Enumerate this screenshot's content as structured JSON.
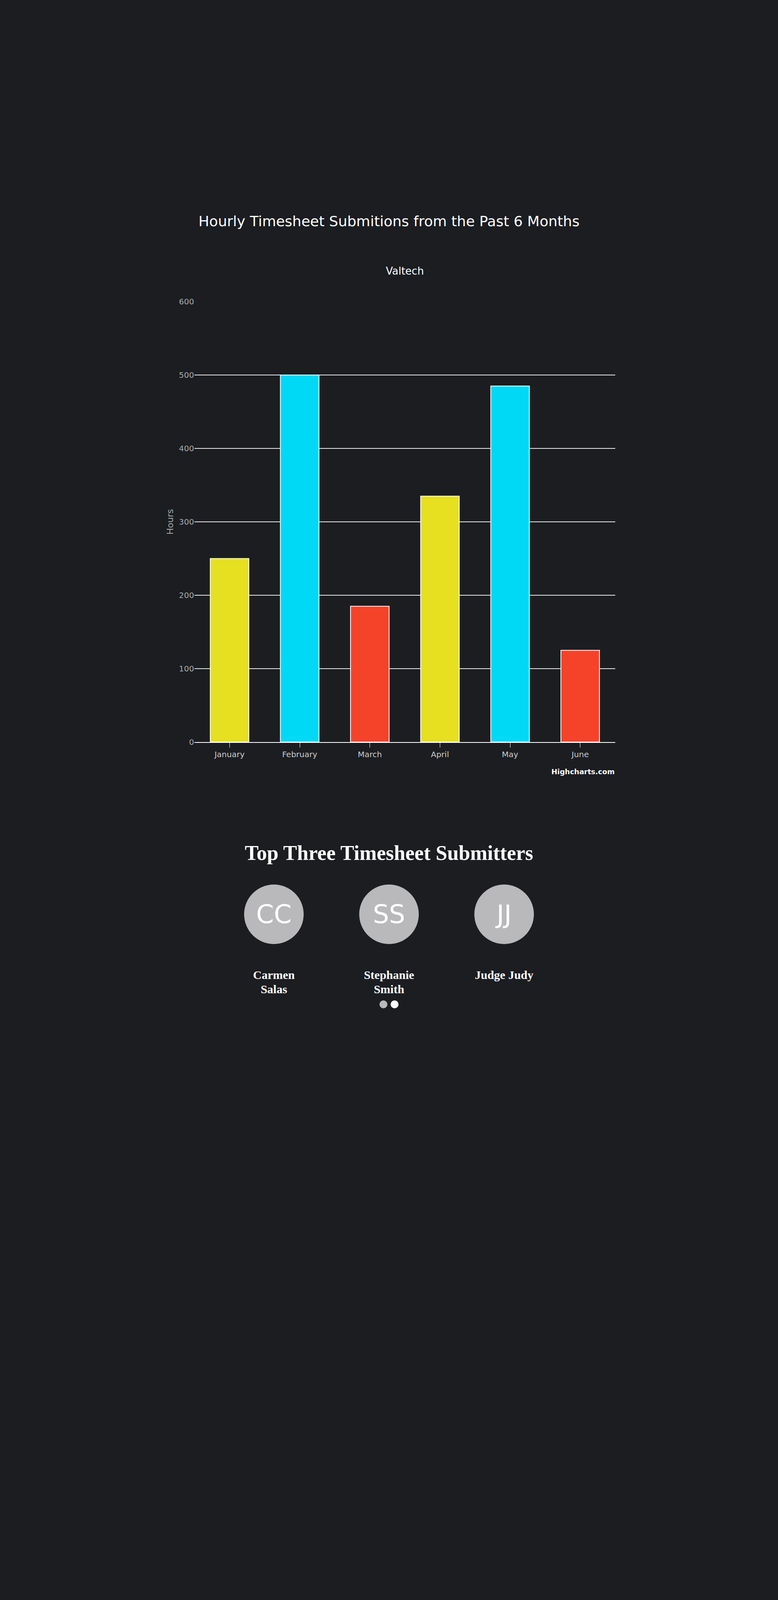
{
  "chart_data": {
    "type": "bar",
    "title": "Hourly Timesheet Submitions from the Past 6 Months",
    "subtitle": "Valtech",
    "y_label": "Hours",
    "categories": [
      "January",
      "February",
      "March",
      "April",
      "May",
      "June"
    ],
    "values": [
      250,
      500,
      185,
      335,
      485,
      125
    ],
    "colors": [
      "#e6e020",
      "#00d9f5",
      "#f5432a",
      "#e6e020",
      "#00d9f5",
      "#f5432a"
    ],
    "ylim": [
      0,
      600
    ],
    "yticks": [
      0,
      100,
      200,
      300,
      400,
      500,
      600
    ],
    "grid": true,
    "annotations": [
      "Highcharts.com"
    ]
  },
  "submitters": {
    "title": "Top Three Timesheet Submitters",
    "people": [
      {
        "initials": "CC",
        "name": "Carmen Salas"
      },
      {
        "initials": "SS",
        "name": "Stephanie Smith"
      },
      {
        "initials": "JJ",
        "name": "Judge Judy"
      }
    ]
  }
}
